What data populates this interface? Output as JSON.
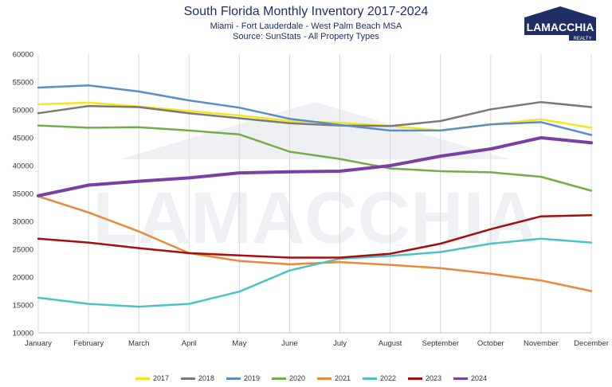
{
  "header": {
    "title": "South Florida Monthly Inventory 2017-2024",
    "subtitle1": "Miami - Fort Lauderdale - West Palm Beach MSA",
    "subtitle2": "Source: SunStats - All Property Types"
  },
  "logo": {
    "text": "LAMACCHIA",
    "subtext": "REALTY",
    "color": "#1f2f66"
  },
  "watermark": "LAMACCHIA",
  "chart_data": {
    "type": "line",
    "title": "South Florida Monthly Inventory 2017-2024",
    "xlabel": "",
    "ylabel": "",
    "ylim": [
      10000,
      60000
    ],
    "yticks": [
      10000,
      15000,
      20000,
      25000,
      30000,
      35000,
      40000,
      45000,
      50000,
      55000,
      60000
    ],
    "grid": "vertical",
    "legend": "bottom",
    "categories": [
      "January",
      "February",
      "March",
      "April",
      "May",
      "June",
      "July",
      "August",
      "September",
      "October",
      "November",
      "December"
    ],
    "series": [
      {
        "name": "2017",
        "color": "#f5e51f",
        "width": 2.5,
        "values": [
          51000,
          51300,
          50600,
          49800,
          49000,
          48000,
          47700,
          47100,
          46300,
          47400,
          48300,
          46800
        ]
      },
      {
        "name": "2018",
        "color": "#7a7a7a",
        "width": 2.5,
        "values": [
          49400,
          50700,
          50500,
          49400,
          48500,
          47600,
          47200,
          47100,
          48000,
          50100,
          51400,
          50500
        ]
      },
      {
        "name": "2019",
        "color": "#5b8cc9",
        "width": 2.5,
        "values": [
          54000,
          54400,
          53300,
          51700,
          50400,
          48400,
          47300,
          46300,
          46300,
          47400,
          47800,
          45500
        ]
      },
      {
        "name": "2020",
        "color": "#72ad47",
        "width": 2.5,
        "values": [
          47200,
          46800,
          46900,
          46300,
          45600,
          42500,
          41200,
          39500,
          39000,
          38800,
          38000,
          35500
        ]
      },
      {
        "name": "2021",
        "color": "#e8883a",
        "width": 2.5,
        "values": [
          34500,
          31600,
          28200,
          24300,
          22900,
          22300,
          22700,
          22200,
          21600,
          20600,
          19400,
          17500
        ]
      },
      {
        "name": "2022",
        "color": "#4bc3c3",
        "width": 2.5,
        "values": [
          16300,
          15200,
          14700,
          15200,
          17400,
          21200,
          23300,
          23800,
          24500,
          26000,
          26900,
          26200
        ]
      },
      {
        "name": "2023",
        "color": "#a80d0d",
        "width": 2.5,
        "values": [
          26900,
          26200,
          25200,
          24300,
          23900,
          23500,
          23500,
          24200,
          26000,
          28600,
          30900,
          31100
        ]
      },
      {
        "name": "2024",
        "color": "#7a3fa3",
        "width": 4,
        "values": [
          34600,
          36500,
          37200,
          37800,
          38700,
          38900,
          39000,
          40000,
          41700,
          43000,
          45000,
          44100
        ]
      }
    ]
  }
}
